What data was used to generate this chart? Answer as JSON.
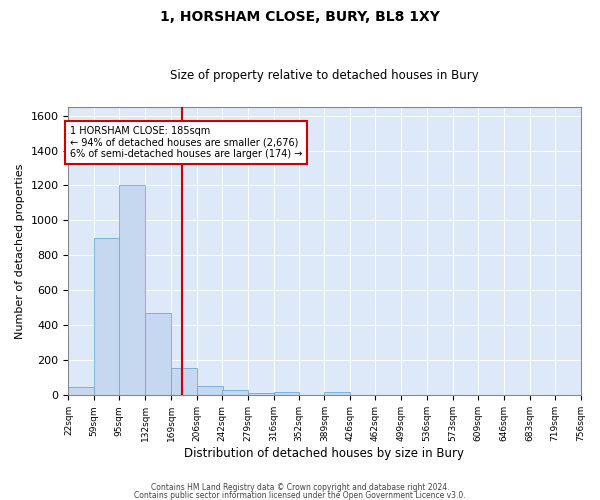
{
  "title": "1, HORSHAM CLOSE, BURY, BL8 1XY",
  "subtitle": "Size of property relative to detached houses in Bury",
  "xlabel": "Distribution of detached houses by size in Bury",
  "ylabel": "Number of detached properties",
  "footer1": "Contains HM Land Registry data © Crown copyright and database right 2024.",
  "footer2": "Contains public sector information licensed under the Open Government Licence v3.0.",
  "annotation_line1": "1 HORSHAM CLOSE: 185sqm",
  "annotation_line2": "← 94% of detached houses are smaller (2,676)",
  "annotation_line3": "6% of semi-detached houses are larger (174) →",
  "property_size": 185,
  "bar_color": "#c5d8f0",
  "bar_edge_color": "#5a9fd4",
  "vline_color": "#cc0000",
  "annotation_box_color": "#cc0000",
  "fig_bg_color": "#ffffff",
  "plot_bg_color": "#dde8f8",
  "grid_color": "#ffffff",
  "bin_edges": [
    22,
    59,
    95,
    132,
    169,
    206,
    242,
    279,
    316,
    352,
    389,
    426,
    462,
    499,
    536,
    573,
    609,
    646,
    683,
    719,
    756
  ],
  "bar_heights": [
    50,
    900,
    1200,
    470,
    155,
    55,
    30,
    15,
    20,
    0,
    20,
    0,
    0,
    0,
    0,
    0,
    0,
    0,
    0,
    0
  ],
  "ylim": [
    0,
    1650
  ],
  "yticks": [
    0,
    200,
    400,
    600,
    800,
    1000,
    1200,
    1400,
    1600
  ]
}
